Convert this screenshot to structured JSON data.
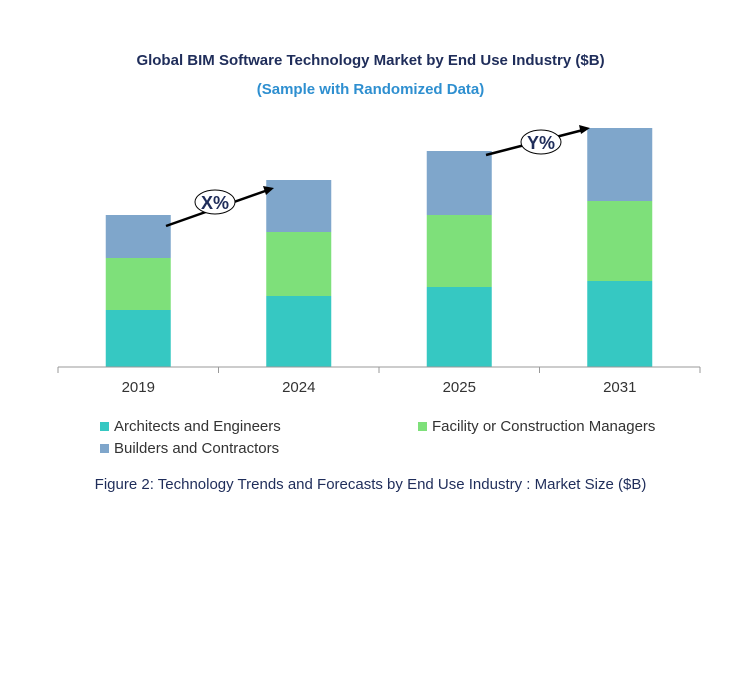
{
  "title": "Global BIM Software Technology Market by End Use Industry ($B)",
  "subtitle": "(Sample with Randomized Data)",
  "caption": "Figure 2: Technology  Trends  and Forecasts by End Use Industry   : Market Size ($B)",
  "annotations": {
    "first": "X%",
    "second": "Y%"
  },
  "chart_data": {
    "type": "bar",
    "stacked": true,
    "categories": [
      "2019",
      "2024",
      "2025",
      "2031"
    ],
    "series": [
      {
        "name": "Architects and Engineers",
        "color": "#36c8c2",
        "values": [
          57,
          71,
          80,
          86
        ]
      },
      {
        "name": "Facility or Construction Managers",
        "color": "#7ee07a",
        "values": [
          52,
          64,
          72,
          80
        ]
      },
      {
        "name": "Builders and Contractors",
        "color": "#7fa6cb",
        "values": [
          43,
          52,
          64,
          73
        ]
      }
    ],
    "ylim": [
      0,
      240
    ],
    "grid": false,
    "legend_position": "bottom"
  }
}
